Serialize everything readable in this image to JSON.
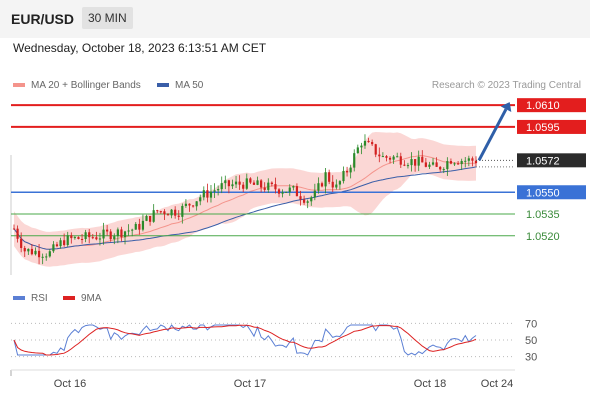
{
  "header": {
    "pair": "EUR/USD",
    "timeframe": "30 MIN"
  },
  "datetime": "Wednesday, October 18, 2023 6:13:51 AM CET",
  "legend_top": [
    {
      "label": "MA 20 + Bollinger Bands",
      "color": "#f4948c"
    },
    {
      "label": "MA 50",
      "color": "#3a5ea8"
    }
  ],
  "legend_bottom": [
    {
      "label": "RSI",
      "color": "#5b7fd4"
    },
    {
      "label": "9MA",
      "color": "#dd2222"
    }
  ],
  "credit": "Research © 2023 Trading Central",
  "colors": {
    "resistance": "#e31e1e",
    "pivot": "#3a72d6",
    "support": "#4aa84a",
    "bull": "#2a8a2a",
    "bear": "#d22020",
    "band": "#fbd3d0",
    "forecast": "#2f5fa8"
  },
  "chart_data": [
    {
      "type": "candlestick",
      "x_labels": [
        "Oct 16",
        "Oct 17",
        "Oct 18",
        "Oct 24"
      ],
      "ylim": [
        1.0493,
        1.0617
      ],
      "current_price": "1.0572",
      "levels": [
        {
          "label": "1.0610",
          "value": 1.061,
          "kind": "resistance",
          "boxed": true
        },
        {
          "label": "1.0595",
          "value": 1.0595,
          "kind": "resistance",
          "boxed": true
        },
        {
          "label": "1.0550",
          "value": 1.055,
          "kind": "pivot",
          "boxed": true
        },
        {
          "label": "1.0535",
          "value": 1.0535,
          "kind": "support",
          "boxed": false
        },
        {
          "label": "1.0520",
          "value": 1.052,
          "kind": "support",
          "boxed": false
        }
      ],
      "forecast": {
        "from": 1.0572,
        "to": 1.061
      }
    },
    {
      "type": "line",
      "series": [
        {
          "name": "RSI"
        },
        {
          "name": "9MA"
        }
      ],
      "y_ticks": [
        "70",
        "50",
        "30"
      ],
      "ylim": [
        20,
        80
      ]
    }
  ]
}
